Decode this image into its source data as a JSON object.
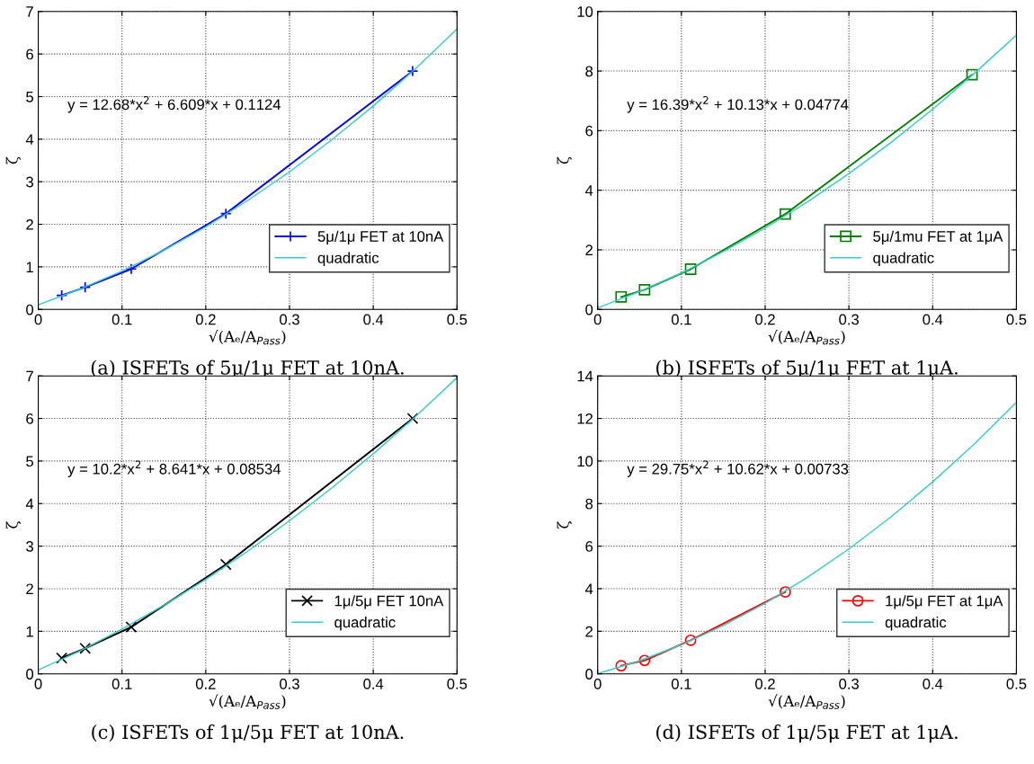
{
  "chart_data": [
    {
      "type": "line",
      "xlabel": "√(Aₑ/A$_{Pass}$)",
      "ylabel": "ζ",
      "xlim": [
        0,
        0.5
      ],
      "xticks": [
        0,
        0.1,
        0.2,
        0.3,
        0.4,
        0.5
      ],
      "ylim": [
        0,
        7
      ],
      "yticks": [
        0,
        1,
        2,
        3,
        4,
        5,
        6,
        7
      ],
      "grid": true,
      "legend": "bottom right",
      "annotations": [
        "y = 12.68*x$^{2}$ + 6.609*x + 0.1124",
        "(a) ISFETs of 5μ/1μ FET at 10nA."
      ],
      "series": [
        {
          "name": "5μ/1μ FET at 10nA",
          "color": "#0000ff",
          "marker": "cross",
          "x": [
            0.028,
            0.056,
            0.111,
            0.224,
            0.447
          ],
          "values": [
            0.33,
            0.52,
            0.95,
            2.25,
            5.6
          ]
        },
        {
          "name": "quadratic",
          "color": "#33cccc",
          "marker": "none",
          "x": [
            0,
            0.05,
            0.1,
            0.15,
            0.2,
            0.25,
            0.3,
            0.35,
            0.4,
            0.45,
            0.5
          ],
          "values": [
            0.11,
            0.48,
            0.9,
            1.39,
            1.94,
            2.56,
            3.23,
            3.98,
            4.78,
            5.65,
            6.59
          ]
        }
      ]
    },
    {
      "type": "line",
      "xlabel": "√(Aₑ/A$_{Pass}$)",
      "ylabel": "ζ",
      "xlim": [
        0,
        0.5
      ],
      "xticks": [
        0,
        0.1,
        0.2,
        0.3,
        0.4,
        0.5
      ],
      "ylim": [
        0,
        10
      ],
      "yticks": [
        0,
        2,
        4,
        6,
        8,
        10
      ],
      "grid": true,
      "legend": "bottom right",
      "annotations": [
        "y = 16.39*x$^{2}$ + 10.13*x + 0.04774",
        "(b) ISFETs of 5μ/1μ FET at 1μA."
      ],
      "series": [
        {
          "name": "5μ/1mu FET at 1μA",
          "color": "#008000",
          "marker": "square",
          "x": [
            0.028,
            0.056,
            0.111,
            0.224,
            0.447
          ],
          "values": [
            0.42,
            0.66,
            1.35,
            3.2,
            7.88
          ]
        },
        {
          "name": "quadratic",
          "color": "#33cccc",
          "marker": "none",
          "x": [
            0,
            0.05,
            0.1,
            0.15,
            0.2,
            0.25,
            0.3,
            0.35,
            0.4,
            0.45,
            0.5
          ],
          "values": [
            0.05,
            0.6,
            1.22,
            1.94,
            2.73,
            3.6,
            4.56,
            5.6,
            6.72,
            7.93,
            9.21
          ]
        }
      ]
    },
    {
      "type": "line",
      "xlabel": "√(Aₑ/A$_{Pass}$)",
      "ylabel": "ζ",
      "xlim": [
        0,
        0.5
      ],
      "xticks": [
        0,
        0.1,
        0.2,
        0.3,
        0.4,
        0.5
      ],
      "ylim": [
        0,
        7
      ],
      "yticks": [
        0,
        1,
        2,
        3,
        4,
        5,
        6,
        7
      ],
      "grid": true,
      "legend": "bottom right",
      "annotations": [
        "y = 10.2*x$^{2}$ + 8.641*x + 0.08534",
        "(c) ISFETs of 1μ/5μ FET at 10nA."
      ],
      "series": [
        {
          "name": "1μ/5μ FET 10nA",
          "color": "#000000",
          "marker": "x",
          "x": [
            0.028,
            0.056,
            0.111,
            0.224,
            0.447
          ],
          "values": [
            0.37,
            0.6,
            1.1,
            2.57,
            6.0
          ]
        },
        {
          "name": "quadratic",
          "color": "#33cccc",
          "marker": "none",
          "x": [
            0,
            0.05,
            0.1,
            0.15,
            0.2,
            0.25,
            0.3,
            0.35,
            0.4,
            0.45,
            0.5
          ],
          "values": [
            0.09,
            0.54,
            1.05,
            1.61,
            2.22,
            2.88,
            3.6,
            4.36,
            5.17,
            6.04,
            6.96
          ]
        }
      ]
    },
    {
      "type": "line",
      "xlabel": "√(Aₑ/A$_{Pass}$)",
      "ylabel": "ζ",
      "xlim": [
        0,
        0.5
      ],
      "xticks": [
        0,
        0.1,
        0.2,
        0.3,
        0.4,
        0.5
      ],
      "ylim": [
        0,
        14
      ],
      "yticks": [
        0,
        2,
        4,
        6,
        8,
        10,
        12,
        14
      ],
      "grid": true,
      "legend": "bottom right",
      "annotations": [
        "y = 29.75*x$^{2}$ + 10.62*x + 0.00733",
        "(d) ISFETs of 1μ/5μ FET at 1μA."
      ],
      "series": [
        {
          "name": "1μ/5μ FET at 1μA",
          "color": "#ff0000",
          "marker": "circle",
          "x": [
            0.028,
            0.056,
            0.111,
            0.224
          ],
          "values": [
            0.38,
            0.63,
            1.58,
            3.85
          ]
        },
        {
          "name": "quadratic",
          "color": "#33cccc",
          "marker": "none",
          "x": [
            0,
            0.05,
            0.1,
            0.15,
            0.2,
            0.25,
            0.3,
            0.35,
            0.4,
            0.45,
            0.5
          ],
          "values": [
            0.01,
            0.61,
            1.37,
            2.27,
            3.32,
            4.52,
            5.87,
            7.37,
            9.02,
            10.81,
            12.76
          ]
        }
      ]
    }
  ]
}
